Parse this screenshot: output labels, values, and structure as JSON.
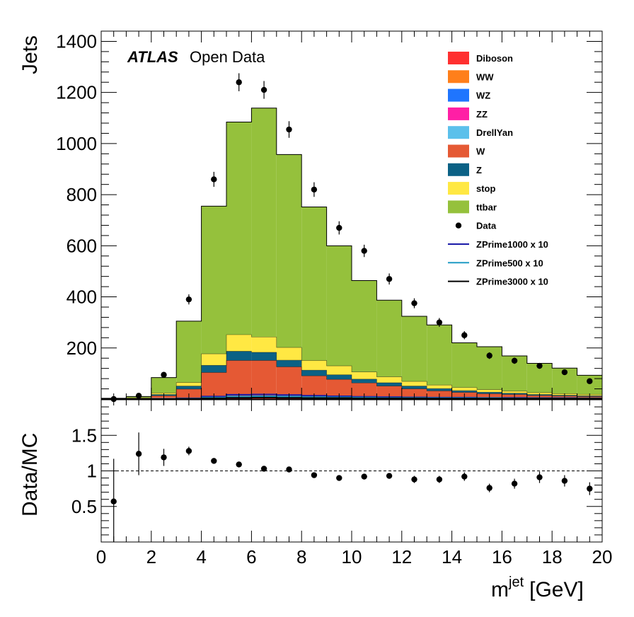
{
  "chart_data": [
    {
      "type": "bar",
      "stacked": true,
      "ylabel": "Jets",
      "ylim": [
        0,
        1440
      ],
      "xlim": [
        0,
        20
      ],
      "y_ticks": [
        "200",
        "400",
        "600",
        "800",
        "1000",
        "1200",
        "1400"
      ],
      "annotation": {
        "bold": "ATLAS",
        "rest": "Open Data"
      },
      "legend_position": "top-right",
      "bin_edges": [
        0,
        1,
        2,
        3,
        4,
        5,
        6,
        7,
        8,
        9,
        10,
        11,
        12,
        13,
        14,
        15,
        16,
        17,
        18,
        19,
        20
      ],
      "series": [
        {
          "name": "Diboson",
          "color": "#ff3030",
          "values": [
            0,
            0,
            0,
            1,
            2,
            3,
            3,
            3,
            2,
            2,
            2,
            1,
            1,
            1,
            1,
            1,
            1,
            0,
            0,
            0
          ]
        },
        {
          "name": "WW",
          "color": "#ff7f1a",
          "values": [
            0,
            0,
            0,
            0,
            1,
            1,
            1,
            1,
            1,
            1,
            1,
            1,
            0,
            0,
            0,
            0,
            0,
            0,
            0,
            0
          ]
        },
        {
          "name": "WZ",
          "color": "#1f75fe",
          "values": [
            0,
            0,
            0,
            0,
            1,
            1,
            1,
            1,
            1,
            1,
            1,
            0,
            0,
            0,
            0,
            0,
            0,
            0,
            0,
            0
          ]
        },
        {
          "name": "ZZ",
          "color": "#ff1fa5",
          "values": [
            0,
            0,
            0,
            0,
            0,
            0,
            0,
            0,
            0,
            0,
            0,
            0,
            0,
            0,
            0,
            0,
            0,
            0,
            0,
            0
          ]
        },
        {
          "name": "DrellYan",
          "color": "#5bc0eb",
          "values": [
            0,
            0,
            1,
            3,
            5,
            6,
            6,
            6,
            5,
            5,
            4,
            4,
            4,
            3,
            3,
            2,
            2,
            2,
            2,
            2
          ]
        },
        {
          "name": "W",
          "color": "#e55934",
          "values": [
            0,
            2,
            12,
            35,
            95,
            140,
            140,
            115,
            82,
            68,
            55,
            45,
            35,
            28,
            22,
            18,
            15,
            12,
            10,
            8
          ]
        },
        {
          "name": "Z",
          "color": "#0b6185",
          "values": [
            0,
            1,
            5,
            12,
            28,
            36,
            32,
            26,
            22,
            18,
            15,
            13,
            11,
            9,
            7,
            6,
            5,
            4,
            3,
            3
          ]
        },
        {
          "name": "stop",
          "color": "#ffe843",
          "values": [
            1,
            2,
            6,
            14,
            45,
            65,
            60,
            50,
            38,
            35,
            28,
            23,
            18,
            14,
            12,
            10,
            8,
            7,
            6,
            5
          ]
        },
        {
          "name": "ttbar",
          "color": "#95c13c",
          "values": [
            2,
            5,
            60,
            240,
            578,
            832,
            896,
            755,
            601,
            470,
            358,
            300,
            255,
            235,
            175,
            168,
            138,
            115,
            100,
            75
          ]
        }
      ],
      "data": {
        "name": "Data",
        "values": [
          0,
          13,
          95,
          390,
          860,
          1240,
          1210,
          1055,
          820,
          670,
          580,
          470,
          375,
          300,
          250,
          170,
          150,
          130,
          105,
          70
        ],
        "errors": [
          1.5,
          3.6,
          9.7,
          19.7,
          29.3,
          35.2,
          34.8,
          32.5,
          28.6,
          25.9,
          24.1,
          21.7,
          19.4,
          17.3,
          15.8,
          13.0,
          12.2,
          11.4,
          10.2,
          8.4
        ]
      },
      "signals": [
        {
          "name": "ZPrime1000 x 10",
          "color": "#1a1aa8",
          "values": [
            0,
            0,
            1,
            3,
            10,
            17,
            18,
            16,
            13,
            11,
            9,
            8,
            7,
            6,
            6,
            5,
            5,
            4,
            4,
            3
          ]
        },
        {
          "name": "ZPrime500 x 10",
          "color": "#1f9bc4",
          "values": [
            0,
            0,
            1,
            2,
            6,
            10,
            11,
            10,
            8,
            7,
            6,
            5,
            5,
            4,
            4,
            4,
            3,
            3,
            3,
            3
          ]
        },
        {
          "name": "ZPrime3000 x 10",
          "color": "#000000",
          "values": [
            0,
            0,
            0,
            1,
            3,
            5,
            6,
            5,
            4,
            4,
            3,
            3,
            3,
            2,
            2,
            2,
            2,
            2,
            2,
            2
          ]
        }
      ]
    },
    {
      "type": "scatter",
      "ylabel": "Data/MC",
      "xlabel_main": "m",
      "xlabel_sup": "jet",
      "xlabel_unit": "[GeV]",
      "ylim": [
        0,
        2.0
      ],
      "xlim": [
        0,
        20
      ],
      "y_ticks": [
        "0.5",
        "1",
        "1.5"
      ],
      "x_ticks": [
        "0",
        "2",
        "4",
        "6",
        "8",
        "10",
        "12",
        "14",
        "16",
        "18",
        "20"
      ],
      "reference_line": 1,
      "x": [
        0.5,
        1.5,
        2.5,
        3.5,
        4.5,
        5.5,
        6.5,
        7.5,
        8.5,
        9.5,
        10.5,
        11.5,
        12.5,
        13.5,
        14.5,
        15.5,
        16.5,
        17.5,
        18.5,
        19.5
      ],
      "values": [
        0.57,
        1.24,
        1.19,
        1.28,
        1.14,
        1.09,
        1.03,
        1.02,
        0.94,
        0.9,
        0.92,
        0.93,
        0.88,
        0.88,
        0.92,
        0.76,
        0.82,
        0.91,
        0.86,
        0.75
      ],
      "errors": [
        0.6,
        0.3,
        0.12,
        0.06,
        0.04,
        0.03,
        0.03,
        0.03,
        0.03,
        0.03,
        0.04,
        0.04,
        0.05,
        0.05,
        0.06,
        0.06,
        0.07,
        0.08,
        0.08,
        0.09
      ]
    }
  ]
}
